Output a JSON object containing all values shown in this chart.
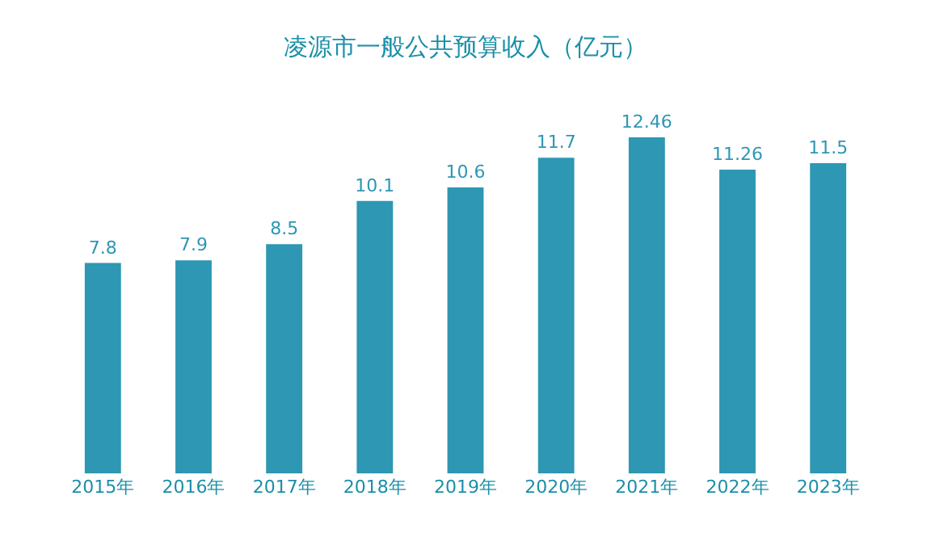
{
  "chart_data": {
    "type": "bar",
    "title": "凌源市一般公共预算收入（亿元）",
    "categories": [
      "2015年",
      "2016年",
      "2017年",
      "2018年",
      "2019年",
      "2020年",
      "2021年",
      "2022年",
      "2023年"
    ],
    "values": [
      7.8,
      7.9,
      8.5,
      10.1,
      10.6,
      11.7,
      12.46,
      11.26,
      11.5
    ],
    "color": "#2e97b3",
    "data_labels": true
  }
}
